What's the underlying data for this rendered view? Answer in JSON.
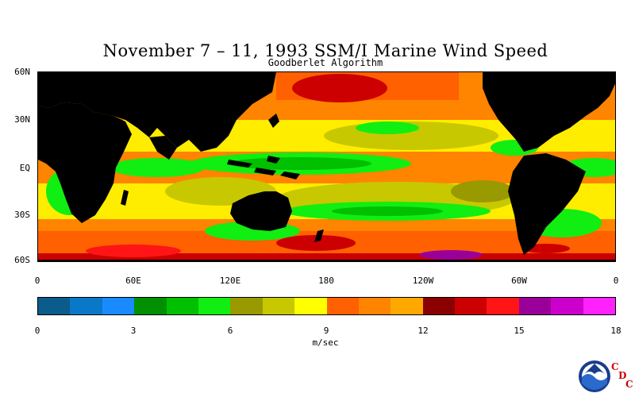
{
  "title": "November 7 – 11, 1993 SSM/I Marine Wind Speed",
  "subtitle": "Goodberlet Algorithm",
  "lat_labels": [
    "60N",
    "30N",
    "EQ",
    "30S",
    "60S"
  ],
  "lon_labels": [
    "0",
    "60E",
    "120E",
    "180",
    "120W",
    "60W",
    "0"
  ],
  "colorbar": {
    "ticks": [
      "0",
      "3",
      "6",
      "9",
      "12",
      "15",
      "18"
    ],
    "units": "m/sec",
    "colors": [
      "#0b5c8a",
      "#0a78c8",
      "#1a8aff",
      "#009000",
      "#00c000",
      "#11ee11",
      "#999900",
      "#c8c800",
      "#ffff00",
      "#ff6000",
      "#ff8400",
      "#ffa800",
      "#8b0000",
      "#cc0000",
      "#ff1515",
      "#9a0099",
      "#cc00cc",
      "#ff22ff"
    ]
  },
  "logo": {
    "name": "NOAA",
    "letters": [
      "C",
      "D",
      "C"
    ]
  }
}
